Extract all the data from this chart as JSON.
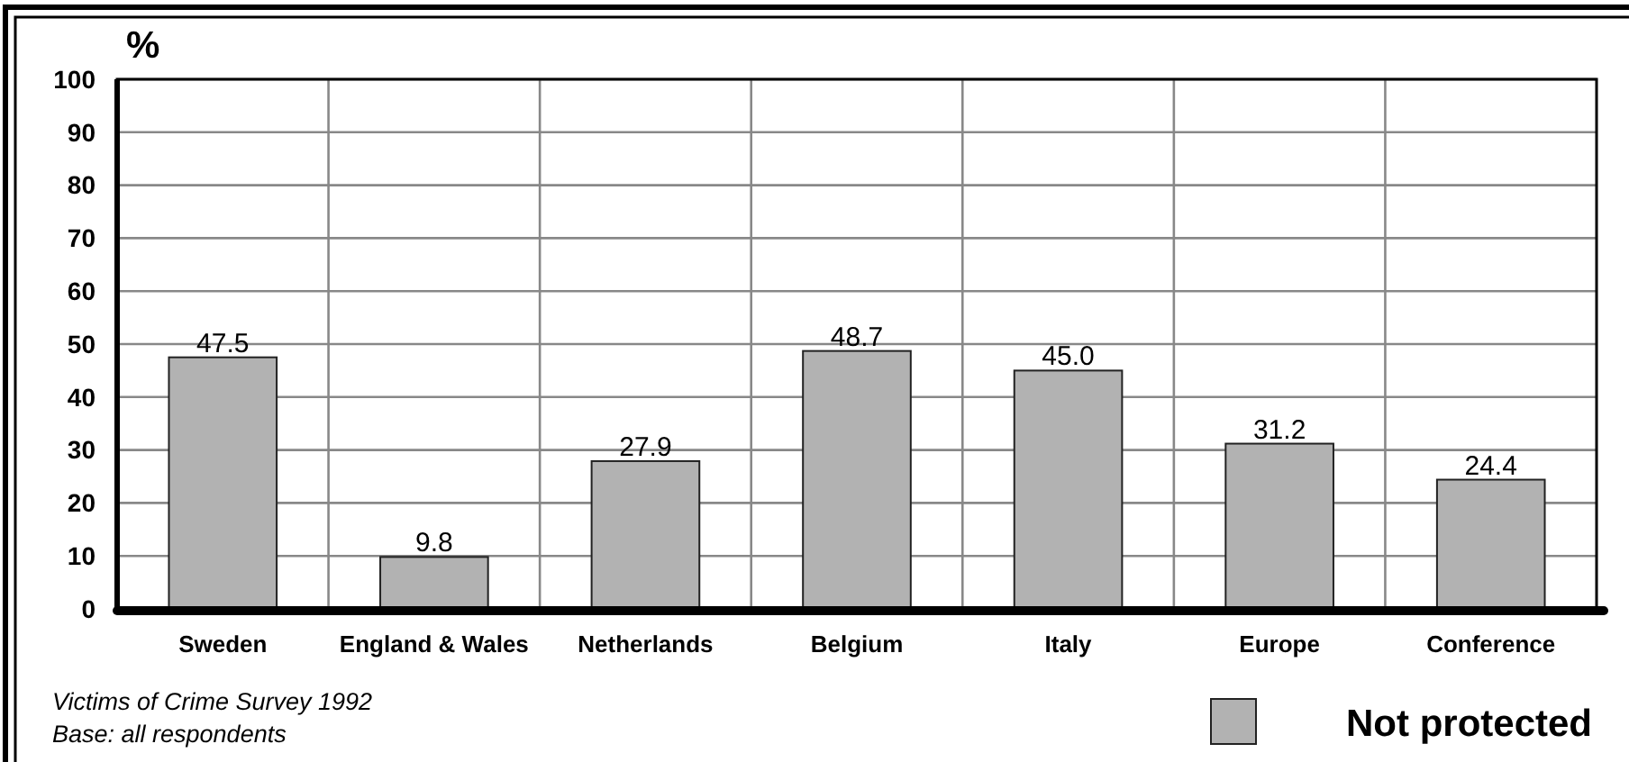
{
  "chart_data": {
    "type": "bar",
    "ylabel": "%",
    "categories": [
      "Sweden",
      "England & Wales",
      "Netherlands",
      "Belgium",
      "Italy",
      "Europe",
      "Conference"
    ],
    "series": [
      {
        "name": "Not protected",
        "color": "#b2b2b2",
        "values": [
          47.5,
          9.8,
          27.9,
          48.7,
          45.0,
          31.2,
          24.4
        ],
        "value_labels": [
          "47.5",
          "9.8",
          "27.9",
          "48.7",
          "45.0",
          "31.2",
          "24.4"
        ]
      }
    ],
    "ylim": [
      0,
      100
    ],
    "yticks": [
      0,
      10,
      20,
      30,
      40,
      50,
      60,
      70,
      80,
      90,
      100
    ],
    "grid": true,
    "legend": "bottom right",
    "annotations": [
      "Victims of Crime Survey 1992",
      "Base: all respondents"
    ]
  }
}
